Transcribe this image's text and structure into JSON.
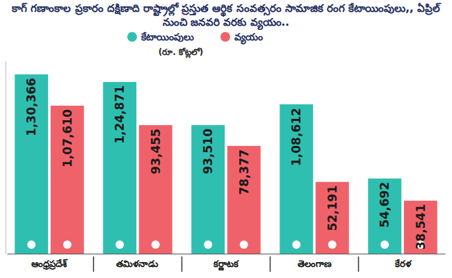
{
  "chart_data": {
    "type": "bar",
    "title": "కాగ్ గణాంకాల ప్రకారం దక్షిణాది రాష్ట్రాల్లో ప్రస్తుత ఆర్థిక సంవత్సరం సామాజిక రంగ కేటాయింపులు,, ఏప్రిల్ నుంచి జనవరి వరకు వ్యయం..",
    "subtitle": "(రూ. కోట్లలో)",
    "categories": [
      "ఆంధ్రప్రదేశ్",
      "తమిళనాడు",
      "కర్ణాటక",
      "తెలంగాణ",
      "కేరళ"
    ],
    "series": [
      {
        "name": "కేటాయింపులు",
        "color": "#2fbfb0",
        "values": [
          130366,
          124871,
          93510,
          108612,
          54692
        ],
        "value_labels": [
          "1,30,366",
          "1,24,871",
          "93,510",
          "1,08,612",
          "54,692"
        ]
      },
      {
        "name": "వ్యయం",
        "color": "#f0626a",
        "values": [
          107610,
          93455,
          78377,
          52191,
          38541
        ],
        "value_labels": [
          "1,07,610",
          "93,455",
          "78,377",
          "52,191",
          "38,541"
        ]
      }
    ],
    "ylim": [
      0,
      140000
    ],
    "data_labels": true,
    "tick_labels": "x",
    "legend": "top",
    "grid": false
  }
}
